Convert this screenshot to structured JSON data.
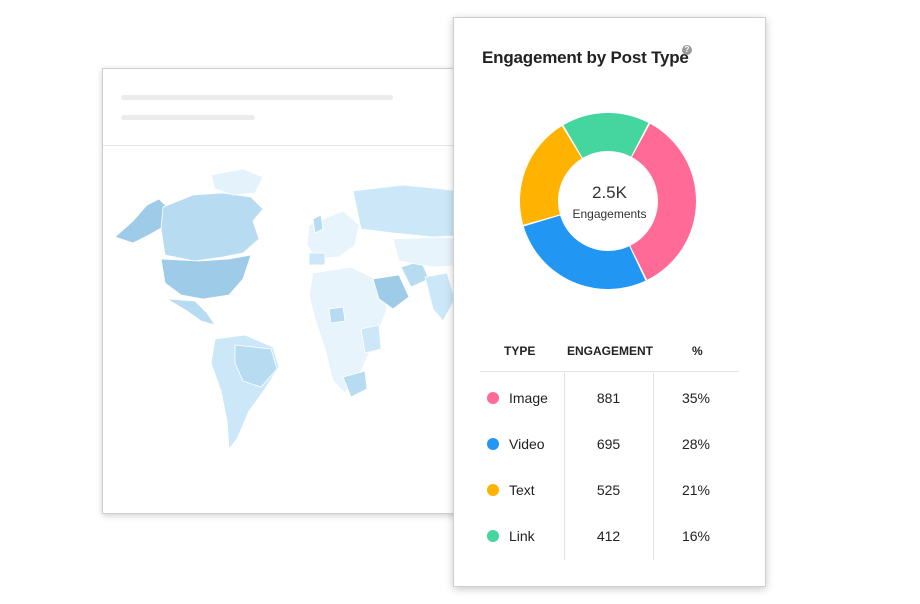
{
  "card": {
    "title": "Engagement by Post Type",
    "help_icon": "help-circle-icon",
    "center_value": "2.5K",
    "center_label": "Engagements"
  },
  "table": {
    "headers": {
      "type": "TYPE",
      "engagement": "ENGAGEMENT",
      "percent": "%"
    },
    "rows": [
      {
        "type": "Image",
        "engagement": "881",
        "percent": "35%",
        "color": "#ff6b96"
      },
      {
        "type": "Video",
        "engagement": "695",
        "percent": "28%",
        "color": "#2196f3"
      },
      {
        "type": "Text",
        "engagement": "525",
        "percent": "21%",
        "color": "#ffb300"
      },
      {
        "type": "Link",
        "engagement": "412",
        "percent": "16%",
        "color": "#45d6a0"
      }
    ]
  },
  "chart_data": {
    "type": "pie",
    "categories": [
      "Image",
      "Video",
      "Text",
      "Link"
    ],
    "values": [
      881,
      695,
      525,
      412
    ],
    "percent": [
      35,
      28,
      21,
      16
    ],
    "colors": [
      "#ff6b96",
      "#2196f3",
      "#ffb300",
      "#45d6a0"
    ],
    "title": "Engagement by Post Type",
    "center_label": "2.5K Engagements"
  },
  "map": {
    "region_color_dark": "#9ecbe8",
    "region_color_light": "#cce8f8"
  }
}
